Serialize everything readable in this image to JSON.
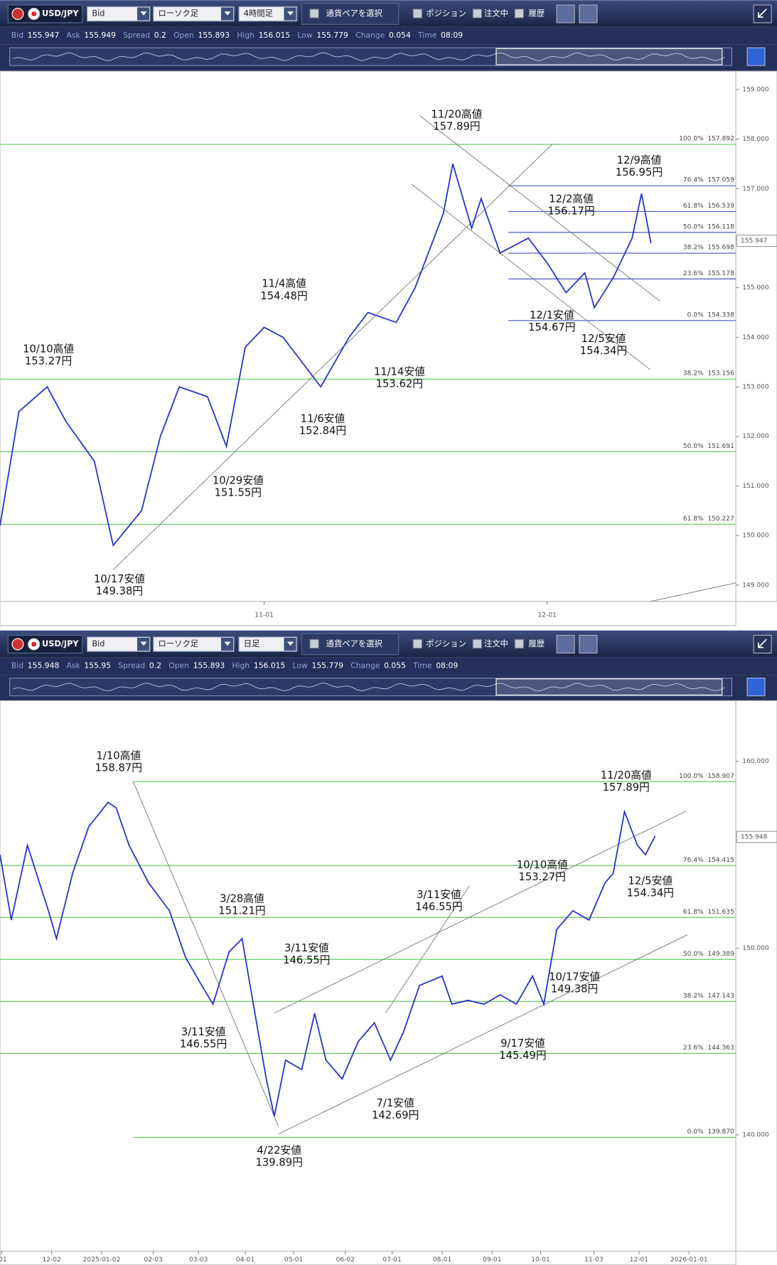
{
  "panels": [
    {
      "toolbar": {
        "pair": "USD/JPY",
        "price_side": "Bid",
        "chart_style": "ローソク足",
        "timeframe": "4時間足",
        "select_pair": "通貨ペアを選択",
        "positions": "ポジション",
        "orders": "注文中",
        "history": "履歴"
      },
      "info": [
        {
          "label": "Bid",
          "value": 155.947
        },
        {
          "label": "Ask",
          "value": 155.949
        },
        {
          "label": "Spread",
          "value": 0.2
        },
        {
          "label": "Open",
          "value": 155.893
        },
        {
          "label": "High",
          "value": 156.015
        },
        {
          "label": "Low",
          "value": 155.779
        },
        {
          "label": "Change",
          "value": 0.054
        },
        {
          "label": "Time",
          "value": "08:09"
        }
      ]
    },
    {
      "toolbar": {
        "pair": "USD/JPY",
        "price_side": "Bid",
        "chart_style": "ローソク足",
        "timeframe": "日足",
        "select_pair": "通貨ペアを選択",
        "positions": "ポジション",
        "orders": "注文中",
        "history": "履歴"
      },
      "info": [
        {
          "label": "Bid",
          "value": 155.948
        },
        {
          "label": "Ask",
          "value": 155.95
        },
        {
          "label": "Spread",
          "value": 0.2
        },
        {
          "label": "Open",
          "value": 155.893
        },
        {
          "label": "High",
          "value": 156.015
        },
        {
          "label": "Low",
          "value": 155.779
        },
        {
          "label": "Change",
          "value": 0.055
        },
        {
          "label": "Time",
          "value": "08:09"
        }
      ]
    }
  ],
  "chart_data": [
    {
      "type": "line",
      "color": "#2b35c8",
      "x": [
        "10-04",
        "10-06",
        "10-09",
        "10-11",
        "10-14",
        "10-16",
        "10-19",
        "10-21",
        "10-23",
        "10-26",
        "10-28",
        "10-30",
        "11-01",
        "11-03",
        "11-05",
        "11-07",
        "11-10",
        "11-12",
        "11-15",
        "11-17",
        "11-20",
        "11-21",
        "11-23",
        "11-24",
        "11-26",
        "11-29",
        "12-01",
        "12-03",
        "12-05",
        "12-06",
        "12-08",
        "12-10",
        "12-11",
        "12-12"
      ],
      "values": [
        150.2,
        152.5,
        153.0,
        152.3,
        151.5,
        149.8,
        150.5,
        152.0,
        153.0,
        152.8,
        151.8,
        153.8,
        154.2,
        154.0,
        153.5,
        153.0,
        154.0,
        154.5,
        154.3,
        155.0,
        156.5,
        157.5,
        156.2,
        156.8,
        155.7,
        156.0,
        155.5,
        154.9,
        155.3,
        154.6,
        155.2,
        156.0,
        156.9,
        155.9
      ],
      "xlim": [
        "10-04",
        "12-21"
      ],
      "xticks": [
        "11-01",
        "12-01"
      ],
      "ylim": [
        148.67,
        159.37
      ],
      "yticks": [
        {
          "value": 149,
          "label": "149.000"
        },
        {
          "value": 150,
          "label": "150.000"
        },
        {
          "value": 151,
          "label": "151.000"
        },
        {
          "value": 152,
          "label": "152.000"
        },
        {
          "value": 153,
          "label": "153.000"
        },
        {
          "value": 154,
          "label": "154.000"
        },
        {
          "value": 155,
          "label": "155.000"
        },
        {
          "value": 156,
          "label": "156.000"
        },
        {
          "value": 157,
          "label": "157.000"
        },
        {
          "value": 158,
          "label": "158.000"
        },
        {
          "value": 159,
          "label": "159.000"
        }
      ],
      "fib_levels": [
        {
          "ratio": "100.0%",
          "price": 157.892
        },
        {
          "ratio": "76.4%",
          "price": 157.059
        },
        {
          "ratio": "61.8%",
          "price": 156.539
        },
        {
          "ratio": "50.0%",
          "price": 156.118
        },
        {
          "ratio": "38.2%",
          "price": 155.698
        },
        {
          "ratio": "23.6%",
          "price": 155.178
        },
        {
          "ratio": "0.0%",
          "price": 154.338
        },
        {
          "ratio": "38.2%",
          "price": 153.156
        },
        {
          "ratio": "50.0%",
          "price": 151.691
        },
        {
          "ratio": "61.8%",
          "price": 150.227
        }
      ],
      "annotations": [
        {
          "lines": [
            "10/10高値",
            "153.27円"
          ]
        },
        {
          "lines": [
            "10/17安値",
            "149.38円"
          ]
        },
        {
          "lines": [
            "10/29安値",
            "151.55円"
          ]
        },
        {
          "lines": [
            "11/4高値",
            "154.48円"
          ]
        },
        {
          "lines": [
            "11/6安値",
            "152.84円"
          ]
        },
        {
          "lines": [
            "11/14安値",
            "153.62円"
          ]
        },
        {
          "lines": [
            "11/20高値",
            "157.89円"
          ]
        },
        {
          "lines": [
            "12/2高値",
            "156.17円"
          ]
        },
        {
          "lines": [
            "12/1安値",
            "154.67円"
          ]
        },
        {
          "lines": [
            "12/5安値",
            "154.34円"
          ]
        },
        {
          "lines": [
            "12/9高値",
            "156.95円"
          ]
        }
      ]
    },
    {
      "type": "line",
      "color": "#2b35c8",
      "x": [
        "2024-10-31",
        "2024-11-07",
        "2024-11-17",
        "2024-11-30",
        "2024-12-05",
        "2024-12-15",
        "2024-12-25",
        "2025-01-06",
        "2025-01-11",
        "2025-01-19",
        "2025-01-31",
        "2025-02-13",
        "2025-02-23",
        "2025-03-05",
        "2025-03-12",
        "2025-03-22",
        "2025-03-30",
        "2025-04-06",
        "2025-04-14",
        "2025-04-19",
        "2025-04-26",
        "2025-05-06",
        "2025-05-14",
        "2025-05-21",
        "2025-05-31",
        "2025-06-10",
        "2025-06-20",
        "2025-06-30",
        "2025-07-08",
        "2025-07-18",
        "2025-08-01",
        "2025-08-07",
        "2025-08-17",
        "2025-08-27",
        "2025-09-06",
        "2025-09-16",
        "2025-09-26",
        "2025-10-03",
        "2025-10-11",
        "2025-10-21",
        "2025-10-31",
        "2025-11-10",
        "2025-11-15",
        "2025-11-22",
        "2025-11-30",
        "2025-12-05",
        "2025-12-11"
      ],
      "values": [
        155.0,
        151.5,
        155.5,
        152.0,
        150.5,
        154.0,
        156.5,
        157.8,
        157.5,
        155.5,
        153.5,
        152.0,
        149.5,
        148.0,
        147.0,
        149.8,
        150.5,
        147.0,
        143.0,
        141.0,
        144.0,
        143.5,
        146.5,
        144.0,
        143.0,
        145.0,
        146.0,
        144.0,
        145.5,
        148.0,
        148.5,
        147.0,
        147.2,
        147.0,
        147.5,
        147.0,
        148.5,
        147.0,
        151.0,
        152.0,
        151.5,
        153.5,
        154.0,
        157.3,
        155.5,
        155.0,
        156.0
      ],
      "xlim": [
        "2024-10-31",
        "2026-01-30"
      ],
      "xticks": [
        {
          "value": "2024-11-01",
          "label": "-01"
        },
        {
          "value": "2024-12-02",
          "label": "12-02"
        },
        "2025-01-02",
        {
          "value": "2025-02-03",
          "label": "02-03"
        },
        {
          "value": "2025-03-03",
          "label": "03-03"
        },
        {
          "value": "2025-04-01",
          "label": "04-01"
        },
        {
          "value": "2025-05-01",
          "label": "05-01"
        },
        {
          "value": "2025-06-02",
          "label": "06-02"
        },
        {
          "value": "2025-07-01",
          "label": "07-01"
        },
        {
          "value": "2025-08-01",
          "label": "08-01"
        },
        {
          "value": "2025-09-01",
          "label": "09-01"
        },
        {
          "value": "2025-10-01",
          "label": "10-01"
        },
        {
          "value": "2025-11-03",
          "label": "11-03"
        },
        {
          "value": "2025-12-01",
          "label": "12-01"
        },
        "2026-01-01"
      ],
      "ylim": [
        133.78,
        163.24
      ],
      "yticks": [
        {
          "value": 140,
          "label": "140.000"
        },
        {
          "value": 150,
          "label": "150.000"
        },
        {
          "value": 160,
          "label": "160.000"
        }
      ],
      "fib_levels": [
        {
          "ratio": "100.0%",
          "price": 158.907
        },
        {
          "ratio": "76.4%",
          "price": 154.415
        },
        {
          "ratio": "61.8%",
          "price": 151.635
        },
        {
          "ratio": "50.0%",
          "price": 149.389
        },
        {
          "ratio": "38.2%",
          "price": 147.143
        },
        {
          "ratio": "23.6%",
          "price": 144.363
        },
        {
          "ratio": "0.0%",
          "price": {
            "value": 139.87,
            "label": "139.870"
          }
        }
      ],
      "annotations": [
        {
          "lines": [
            "1/10高値",
            "158.87円"
          ]
        },
        {
          "lines": [
            "3/28高値",
            "151.21円"
          ]
        },
        {
          "lines": [
            "3/11安値",
            "146.55円"
          ]
        },
        {
          "lines": [
            "3/11安値",
            "146.55円"
          ]
        },
        {
          "lines": [
            "4/22安値",
            "139.89円"
          ]
        },
        {
          "lines": [
            "7/1安値",
            "142.69円"
          ]
        },
        {
          "lines": [
            "3/11安値",
            "146.55円"
          ]
        },
        {
          "lines": [
            "10/10高値",
            "153.27円"
          ]
        },
        {
          "lines": [
            "9/17安値",
            "145.49円"
          ]
        },
        {
          "lines": [
            "10/17安値",
            "149.38円"
          ]
        },
        {
          "lines": [
            "11/20高値",
            "157.89円"
          ]
        },
        {
          "lines": [
            "12/5安値",
            "154.34円"
          ]
        }
      ]
    }
  ]
}
